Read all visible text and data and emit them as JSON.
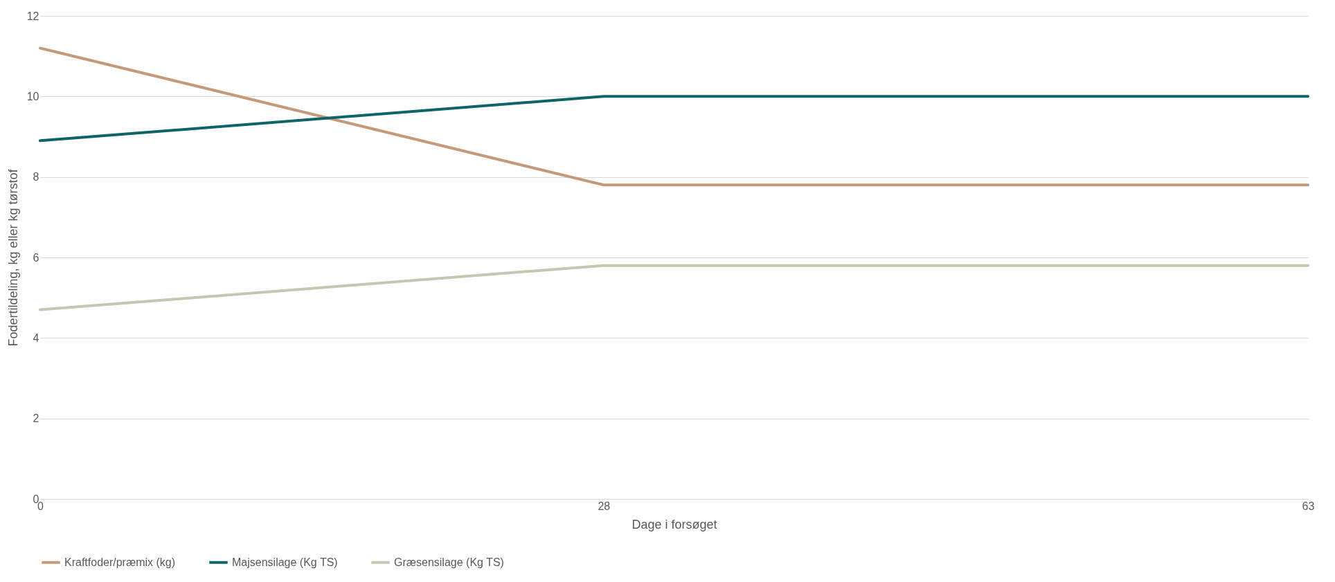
{
  "chart_data": {
    "type": "line",
    "xlabel": "Dage i forsøget",
    "ylabel": "Fodertildeling, kg eller kg tørstof",
    "x": [
      0,
      28,
      63
    ],
    "xlim": [
      0,
      63
    ],
    "xticks": [
      0,
      28,
      63
    ],
    "ylim": [
      0,
      12
    ],
    "yticks": [
      0,
      2,
      4,
      6,
      8,
      10,
      12
    ],
    "grid": "y",
    "legend": "bottom",
    "marker": "none",
    "line_style": "solid",
    "series": [
      {
        "name": "Kraftfoder/præmix (kg)",
        "color": "#c49a7c",
        "values": [
          11.2,
          7.8,
          7.8
        ]
      },
      {
        "name": "Majsensilage (Kg TS)",
        "color": "#0e6468",
        "values": [
          8.9,
          10.0,
          10.0
        ]
      },
      {
        "name": "Græsensilage (Kg TS)",
        "color": "#c5c8b0",
        "values": [
          4.7,
          5.8,
          5.8
        ]
      }
    ]
  }
}
